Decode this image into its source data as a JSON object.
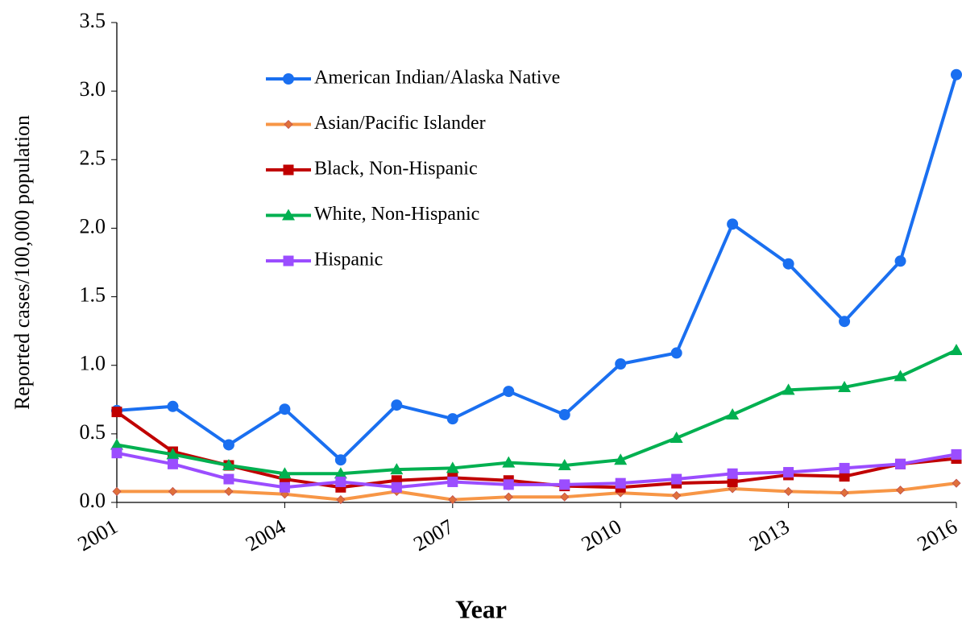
{
  "chart_data": {
    "type": "line",
    "x_label": "Year",
    "y_label": "Reported cases/100,000 population",
    "x": [
      2001,
      2002,
      2003,
      2004,
      2005,
      2006,
      2007,
      2008,
      2009,
      2010,
      2011,
      2012,
      2013,
      2014,
      2015,
      2016
    ],
    "xlim": [
      2001,
      2016
    ],
    "xticks": [
      2001,
      2004,
      2007,
      2010,
      2013,
      2016
    ],
    "ylim": [
      0,
      3.5
    ],
    "yticks": [
      {
        "value": 0,
        "label": "0.0"
      },
      0.5,
      {
        "value": 1,
        "label": "1.0"
      },
      1.5,
      {
        "value": 2,
        "label": "2.0"
      },
      2.5,
      {
        "value": 3,
        "label": "3.0"
      },
      3.5
    ],
    "grid": false,
    "legend": "upper left",
    "series": [
      {
        "name": "American Indian/Alaska Native",
        "color": "#1a6ff0",
        "marker": "circle",
        "values": [
          0.67,
          0.7,
          0.42,
          0.68,
          0.31,
          0.71,
          0.61,
          0.81,
          0.64,
          1.01,
          1.09,
          2.03,
          1.74,
          1.32,
          1.76,
          3.12
        ]
      },
      {
        "name": "Asian/Pacific Islander",
        "color": "#f79646",
        "marker": "diamond",
        "values": [
          0.08,
          0.08,
          0.08,
          0.06,
          0.02,
          0.08,
          0.02,
          0.04,
          0.04,
          0.07,
          0.05,
          0.1,
          0.08,
          0.07,
          0.09,
          0.14
        ]
      },
      {
        "name": "Black, Non-Hispanic",
        "color": "#c00000",
        "marker": "square",
        "values": [
          0.66,
          0.37,
          0.27,
          0.17,
          0.11,
          0.16,
          0.18,
          0.16,
          0.12,
          0.11,
          0.14,
          0.15,
          0.2,
          0.19,
          0.28,
          0.32
        ]
      },
      {
        "name": "White, Non-Hispanic",
        "color": "#00b050",
        "marker": "triangle",
        "values": [
          0.42,
          0.35,
          0.27,
          0.21,
          0.21,
          0.24,
          0.25,
          0.29,
          0.27,
          0.31,
          0.47,
          0.64,
          0.82,
          0.84,
          0.92,
          1.11
        ]
      },
      {
        "name": "Hispanic",
        "color": "#9b4dff",
        "marker": "square",
        "values": [
          0.36,
          0.28,
          0.17,
          0.11,
          0.15,
          0.11,
          0.15,
          0.13,
          0.13,
          0.14,
          0.17,
          0.21,
          0.22,
          0.25,
          0.28,
          0.35
        ]
      }
    ]
  }
}
